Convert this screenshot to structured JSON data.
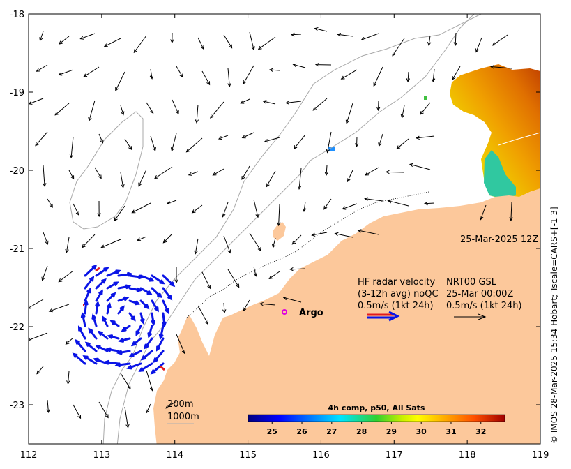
{
  "map": {
    "x_ticks": [
      "112",
      "113",
      "114",
      "115",
      "116",
      "117",
      "118",
      "119"
    ],
    "y_ticks": [
      "-18",
      "-19",
      "-20",
      "-21",
      "-22",
      "-23"
    ],
    "lon_range": [
      112,
      119
    ],
    "lat_range": [
      -23.5,
      -18
    ]
  },
  "annotations": {
    "timestamp": "25-Mar-2025 12Z",
    "hf_line1": "HF radar velocity",
    "hf_line2": "(3-12h avg) noQC",
    "hf_line3": "0.5m/s (1kt 24h)",
    "nrt_line1": "NRT00 GSL",
    "nrt_line2": "25-Mar 00:00Z",
    "nrt_line3": "0.5m/s (1kt 24h)",
    "argo_label": "Argo",
    "contour_200": "200m",
    "contour_1000": "1000m"
  },
  "colorbar": {
    "title": "4h comp, p50, All Sats",
    "ticks": [
      "25",
      "26",
      "27",
      "28",
      "29",
      "30",
      "31",
      "32"
    ],
    "range": [
      24.2,
      32.8
    ]
  },
  "credit": "© IMOS 28-Mar-2025 15:34 Hobart; Tscale=CARS+[-1 3]",
  "colors": {
    "land": "#fcc89b",
    "hf_arrow": "#0a14e6",
    "hf_flag": "#e31a1c",
    "argo": "#e000e0"
  }
}
